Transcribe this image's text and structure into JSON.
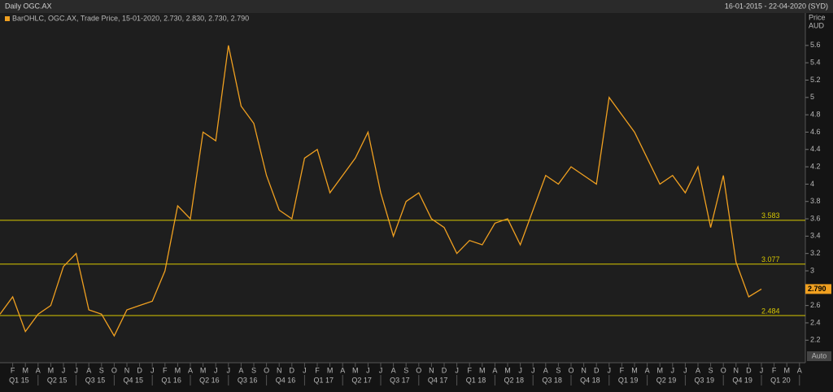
{
  "chart_data": {
    "type": "line",
    "title": "Daily OGC.AX",
    "date_range": "16-01-2015 - 22-04-2020 (SYD)",
    "legend": "BarOHLC, OGC.AX, Trade Price, 15-01-2020, 2.730, 2.830, 2.730, 2.790",
    "y_label": "Price",
    "y_unit": "AUD",
    "button": "Auto",
    "color": "#f0a020",
    "level_color": "#d8c800",
    "values": [
      2.5,
      2.7,
      2.3,
      2.5,
      2.6,
      3.05,
      3.2,
      2.55,
      2.5,
      2.25,
      2.55,
      2.6,
      2.65,
      3.0,
      3.75,
      3.6,
      4.6,
      4.5,
      5.6,
      4.9,
      4.7,
      4.1,
      3.7,
      3.6,
      4.3,
      4.4,
      3.9,
      4.1,
      4.3,
      4.6,
      3.9,
      3.4,
      3.8,
      3.9,
      3.6,
      3.5,
      3.2,
      3.35,
      3.3,
      3.55,
      3.6,
      3.3,
      3.7,
      4.1,
      4.0,
      4.2,
      4.1,
      4.0,
      5.0,
      4.8,
      4.6,
      4.3,
      4.0,
      4.1,
      3.9,
      4.2,
      3.5,
      4.1,
      3.1,
      2.7,
      2.79
    ],
    "levels": [
      3.583,
      3.077,
      2.484
    ],
    "last_price": {
      "value": 2.79,
      "label": "2.790"
    },
    "ylim": [
      1.94,
      5.88
    ],
    "yticks": [
      2.2,
      2.4,
      2.6,
      2.8,
      3,
      3.2,
      3.4,
      3.6,
      3.8,
      4,
      4.2,
      4.4,
      4.6,
      4.8,
      5,
      5.2,
      5.4,
      5.6
    ],
    "month_labels": [
      "F",
      "M",
      "A",
      "M",
      "J",
      "J",
      "A",
      "S",
      "O",
      "N",
      "D",
      "J",
      "F",
      "M",
      "A",
      "M",
      "J",
      "J",
      "A",
      "S",
      "O",
      "N",
      "D",
      "J",
      "F",
      "M",
      "A",
      "M",
      "J",
      "J",
      "A",
      "S",
      "O",
      "N",
      "D",
      "J",
      "F",
      "M",
      "A",
      "M",
      "J",
      "J",
      "A",
      "S",
      "O",
      "N",
      "D",
      "J",
      "F",
      "M",
      "A",
      "M",
      "J",
      "J",
      "A",
      "S",
      "O",
      "N",
      "D",
      "J",
      "F",
      "M",
      "A"
    ],
    "quarter_labels": [
      "Q1 15",
      "Q2 15",
      "Q3 15",
      "Q4 15",
      "Q1 16",
      "Q2 16",
      "Q3 16",
      "Q4 16",
      "Q1 17",
      "Q2 17",
      "Q3 17",
      "Q4 17",
      "Q1 18",
      "Q2 18",
      "Q3 18",
      "Q4 18",
      "Q1 19",
      "Q2 19",
      "Q3 19",
      "Q4 19",
      "Q1 20"
    ]
  }
}
